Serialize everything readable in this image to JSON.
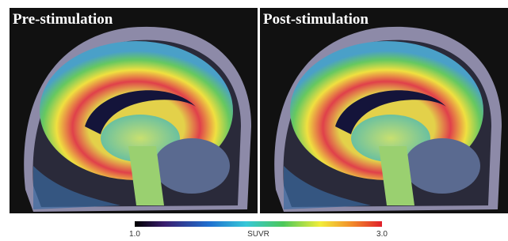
{
  "panels": [
    {
      "label": "Pre-stimulation"
    },
    {
      "label": "Post-stimulation"
    }
  ],
  "colorbar": {
    "min_label": "1.0",
    "title": "SUVR",
    "max_label": "3.0"
  }
}
